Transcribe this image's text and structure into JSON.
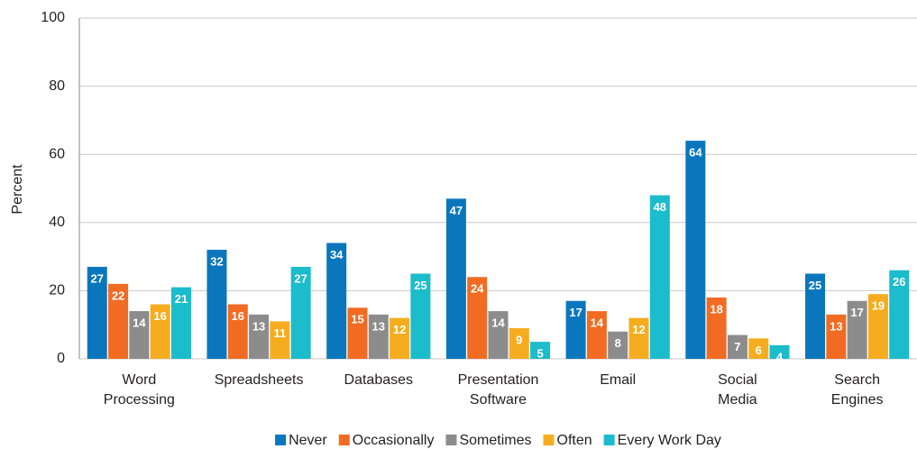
{
  "chart_data": {
    "type": "bar",
    "ylabel": "Percent",
    "categories": [
      [
        "Word",
        "Processing"
      ],
      [
        "Spreadsheets"
      ],
      [
        "Databases"
      ],
      [
        "Presentation",
        "Software"
      ],
      [
        "Email"
      ],
      [
        "Social",
        "Media"
      ],
      [
        "Search",
        "Engines"
      ]
    ],
    "series": [
      {
        "name": "Never",
        "color": "#0a77bd",
        "values": [
          27,
          32,
          34,
          47,
          17,
          64,
          25
        ]
      },
      {
        "name": "Occasionally",
        "color": "#f26b22",
        "values": [
          22,
          16,
          15,
          24,
          14,
          18,
          13
        ]
      },
      {
        "name": "Sometimes",
        "color": "#8c8c8c",
        "values": [
          14,
          13,
          13,
          14,
          8,
          7,
          17
        ]
      },
      {
        "name": "Often",
        "color": "#f5ad1f",
        "values": [
          16,
          11,
          12,
          9,
          12,
          6,
          19
        ]
      },
      {
        "name": "Every Work Day",
        "color": "#1bbccc",
        "values": [
          21,
          27,
          25,
          5,
          48,
          4,
          26
        ]
      }
    ],
    "ylim": [
      0,
      100
    ],
    "yticks": [
      0,
      20,
      40,
      60,
      80,
      100
    ],
    "grid": true,
    "legend": "bottom"
  }
}
